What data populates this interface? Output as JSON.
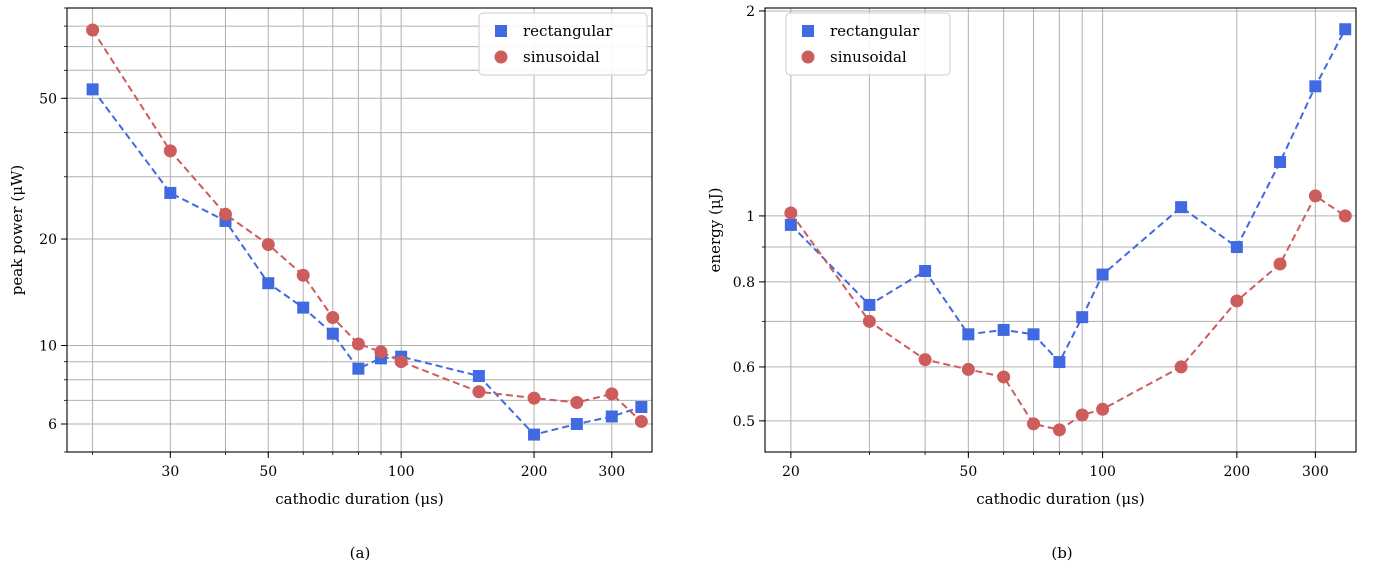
{
  "colors": {
    "rectangular": "#4169E1",
    "sinusoidal": "#CD5C5C",
    "grid": "#b0b0b0"
  },
  "chart_data": [
    {
      "type": "line",
      "caption": "(a)",
      "xlabel": "cathodic duration (μs)",
      "ylabel": "peak power (μW)",
      "xscale": "log",
      "yscale": "log",
      "xlim": [
        17.5,
        370
      ],
      "ylim": [
        5.0,
        90
      ],
      "xticks": [
        30,
        50,
        100,
        200,
        300
      ],
      "xtick_labels": [
        "30",
        "50",
        "100",
        "200",
        "300"
      ],
      "yticks": [
        6,
        10,
        20,
        50
      ],
      "ytick_labels": [
        "6",
        "10",
        "20",
        "50"
      ],
      "grid": true,
      "legend": "top-right",
      "series": [
        {
          "name": "rectangular",
          "marker": "square",
          "color": "#4169E1",
          "linestyle": "dashed",
          "x": [
            20,
            30,
            40,
            50,
            60,
            70,
            80,
            90,
            100,
            150,
            200,
            250,
            300,
            350
          ],
          "y": [
            53,
            27,
            22.5,
            15,
            12.8,
            10.8,
            8.6,
            9.2,
            9.3,
            8.2,
            5.6,
            6.0,
            6.3,
            6.7
          ]
        },
        {
          "name": "sinusoidal",
          "marker": "circle",
          "color": "#CD5C5C",
          "linestyle": "dashed",
          "x": [
            20,
            30,
            40,
            50,
            60,
            70,
            80,
            90,
            100,
            150,
            200,
            250,
            300,
            350
          ],
          "y": [
            78,
            35.5,
            23.5,
            19.3,
            15.8,
            12,
            10.1,
            9.6,
            9,
            7.4,
            7.1,
            6.9,
            7.3,
            6.1
          ]
        }
      ]
    },
    {
      "type": "line",
      "caption": "(b)",
      "xlabel": "cathodic duration (μs)",
      "ylabel": "energy (μJ)",
      "xscale": "log",
      "yscale": "log",
      "xlim": [
        17.5,
        370
      ],
      "ylim": [
        0.45,
        2.02
      ],
      "xticks": [
        20,
        50,
        100,
        200,
        300
      ],
      "xtick_labels": [
        "20",
        "50",
        "100",
        "200",
        "300"
      ],
      "yticks": [
        0.5,
        0.6,
        0.8,
        1,
        2
      ],
      "ytick_labels": [
        "0.5",
        "0.6",
        "0.8",
        "1",
        "2"
      ],
      "grid": true,
      "legend": "top-left",
      "series": [
        {
          "name": "rectangular",
          "marker": "square",
          "color": "#4169E1",
          "linestyle": "dashed",
          "x": [
            20,
            30,
            40,
            50,
            60,
            70,
            80,
            90,
            100,
            150,
            200,
            250,
            300,
            350
          ],
          "y": [
            0.97,
            0.74,
            0.83,
            0.67,
            0.68,
            0.67,
            0.61,
            0.71,
            0.82,
            1.03,
            0.9,
            1.2,
            1.55,
            1.88
          ]
        },
        {
          "name": "sinusoidal",
          "marker": "circle",
          "color": "#CD5C5C",
          "linestyle": "dashed",
          "x": [
            20,
            30,
            40,
            50,
            60,
            70,
            80,
            90,
            100,
            150,
            200,
            250,
            300,
            350
          ],
          "y": [
            1.01,
            0.7,
            0.615,
            0.595,
            0.58,
            0.495,
            0.485,
            0.51,
            0.52,
            0.6,
            0.75,
            0.85,
            1.07,
            1.0
          ]
        }
      ]
    }
  ]
}
